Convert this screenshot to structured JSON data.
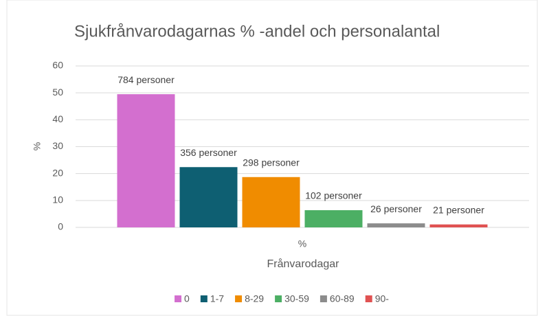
{
  "chart_data": {
    "type": "bar",
    "title": "Sjukfrånvarodagarnas % -andel och personalantal",
    "y_label": "%",
    "x_label": "Frånvarodagar",
    "categories": [
      "%"
    ],
    "series": [
      {
        "name": "0",
        "color": "#d36fcf",
        "values": [
          49.5
        ],
        "labels": [
          "784 personer"
        ]
      },
      {
        "name": "1-7",
        "color": "#0e5f72",
        "values": [
          22.4
        ],
        "labels": [
          "356 personer"
        ]
      },
      {
        "name": "8-29",
        "color": "#f08c00",
        "values": [
          18.7
        ],
        "labels": [
          "298 personer"
        ]
      },
      {
        "name": "30-59",
        "color": "#4caf64",
        "values": [
          6.4
        ],
        "labels": [
          "102 personer"
        ]
      },
      {
        "name": "60-89",
        "color": "#8c8c8c",
        "values": [
          1.5
        ],
        "labels": [
          "26 personer"
        ]
      },
      {
        "name": "90-",
        "color": "#e05252",
        "values": [
          1.1
        ],
        "labels": [
          "21 personer"
        ]
      }
    ],
    "ylim": [
      0,
      60
    ],
    "yticks": [
      0,
      10,
      20,
      30,
      40,
      50,
      60
    ],
    "grid": true,
    "legend": "bottom"
  }
}
